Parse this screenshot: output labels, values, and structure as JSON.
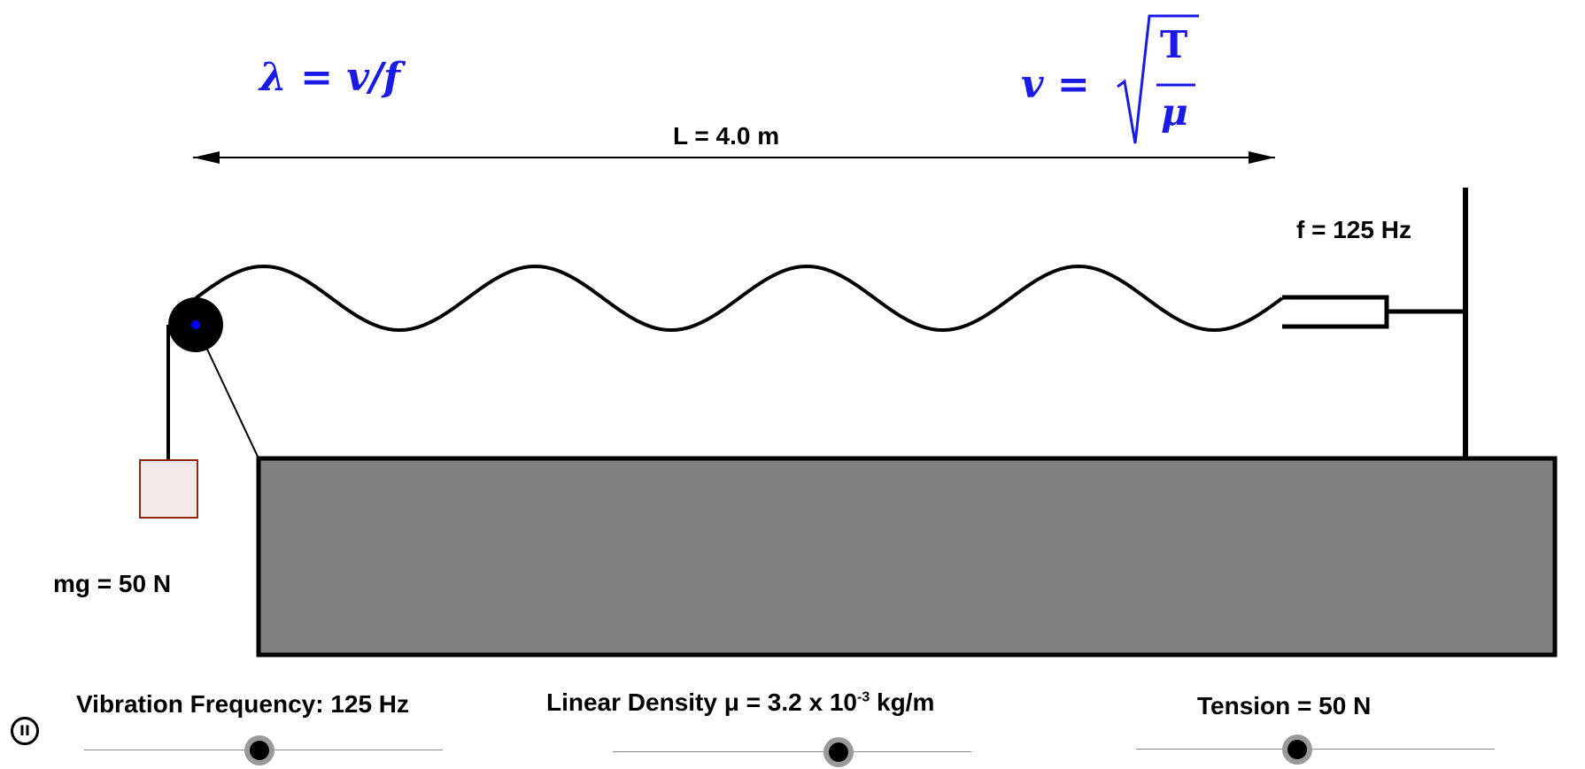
{
  "formulas": {
    "wavelength": "λ = v/f",
    "velocity_lhs": "v =",
    "velocity_num": "T",
    "velocity_den": "μ"
  },
  "labels": {
    "length": "L = 4.0 m",
    "frequency": "f = 125 Hz",
    "weight": "mg = 50 N"
  },
  "controls": {
    "pause_icon": "pause-icon",
    "pause_glyph": "II",
    "frequency_slider": {
      "label": "Vibration Frequency: 125 Hz",
      "value_fraction": 0.49
    },
    "density_slider": {
      "label_main": "Linear Density  μ = 3.2 x 10",
      "label_exp": "-3",
      "label_unit": " kg/m",
      "value_fraction": 0.63
    },
    "tension_slider": {
      "label": "Tension = 50 N",
      "value_fraction": 0.45
    }
  },
  "colors": {
    "formula": "#1a1ae6",
    "table": "#808080",
    "mass_fill": "#f2eae8",
    "mass_border": "#8b2a10",
    "pulley_center": "#0000ff"
  },
  "wave": {
    "wavelengths_shown": 4
  }
}
